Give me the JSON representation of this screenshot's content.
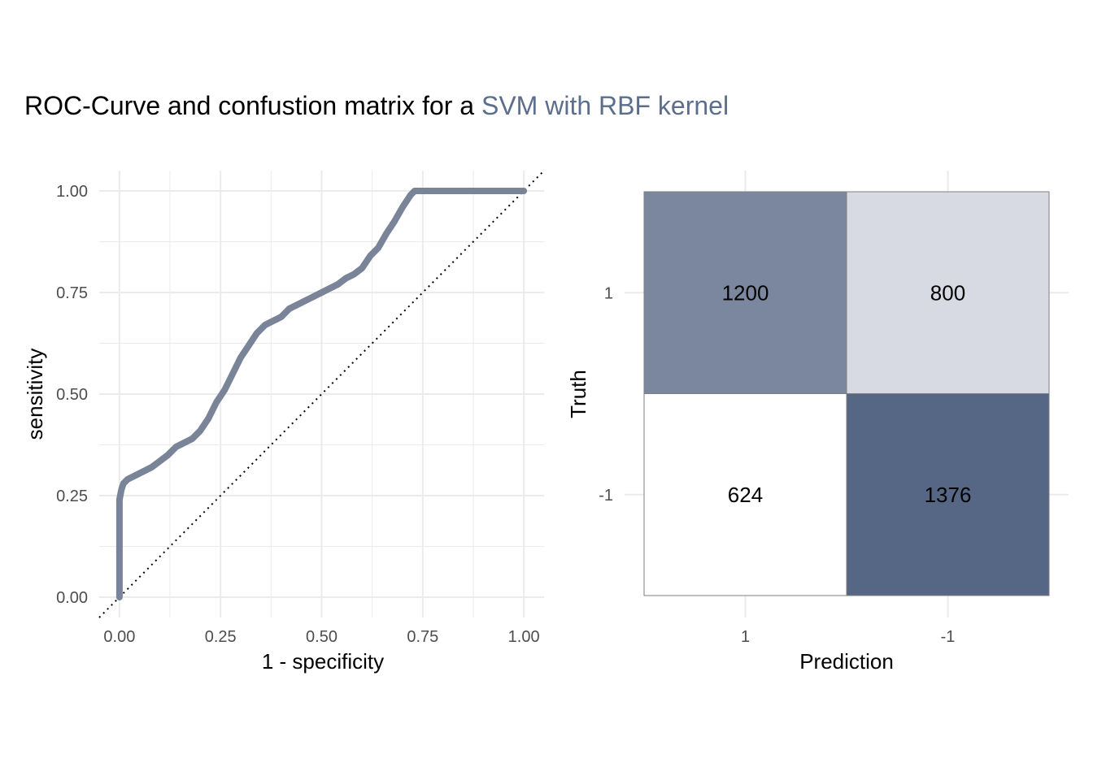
{
  "title": {
    "prefix": "ROC-Curve and confustion matrix for a ",
    "accent": "SVM with RBF kernel",
    "accent_color": "#5c6e8c"
  },
  "chart_data": [
    {
      "type": "line",
      "title": "",
      "xlabel": "1 - specificity",
      "ylabel": "sensitivity",
      "xlim": [
        -0.05,
        1.05
      ],
      "ylim": [
        -0.05,
        1.05
      ],
      "x_ticks": [
        "0.00",
        "0.25",
        "0.50",
        "0.75",
        "1.00"
      ],
      "y_ticks": [
        "0.00",
        "0.25",
        "0.50",
        "0.75",
        "1.00"
      ],
      "grid": true,
      "line_color": "#7a8499",
      "reference_line": {
        "style": "dotted",
        "from": [
          -0.05,
          -0.05
        ],
        "to": [
          1.05,
          1.05
        ]
      },
      "series": [
        {
          "x": [
            0,
            0,
            0,
            0.005,
            0.01,
            0.02,
            0.04,
            0.06,
            0.08,
            0.1,
            0.12,
            0.14,
            0.16,
            0.18,
            0.2,
            0.22,
            0.24,
            0.26,
            0.28,
            0.3,
            0.32,
            0.34,
            0.36,
            0.38,
            0.4,
            0.42,
            0.44,
            0.46,
            0.48,
            0.5,
            0.52,
            0.54,
            0.56,
            0.58,
            0.6,
            0.62,
            0.64,
            0.66,
            0.68,
            0.7,
            0.72,
            0.73,
            0.75,
            0.8,
            0.9,
            1.0
          ],
          "y": [
            0,
            0.15,
            0.24,
            0.265,
            0.28,
            0.29,
            0.3,
            0.31,
            0.32,
            0.335,
            0.35,
            0.37,
            0.38,
            0.39,
            0.41,
            0.44,
            0.48,
            0.51,
            0.55,
            0.59,
            0.62,
            0.65,
            0.67,
            0.68,
            0.69,
            0.71,
            0.72,
            0.73,
            0.74,
            0.75,
            0.76,
            0.77,
            0.785,
            0.795,
            0.81,
            0.84,
            0.86,
            0.895,
            0.925,
            0.96,
            0.99,
            1.0,
            1.0,
            1.0,
            1.0,
            1.0
          ]
        }
      ]
    },
    {
      "type": "heatmap",
      "title": "",
      "xlabel": "Prediction",
      "ylabel": "Truth",
      "x_categories": [
        "1",
        "-1"
      ],
      "y_categories": [
        "1",
        "-1"
      ],
      "cells": [
        {
          "truth": "1",
          "prediction": "1",
          "value": 1200,
          "label": "1200",
          "fill": "#7b879f"
        },
        {
          "truth": "1",
          "prediction": "-1",
          "value": 800,
          "label": "800",
          "fill": "#d8dae3"
        },
        {
          "truth": "-1",
          "prediction": "1",
          "value": 624,
          "label": "624",
          "fill": "#ffffff"
        },
        {
          "truth": "-1",
          "prediction": "-1",
          "value": 1376,
          "label": "1376",
          "fill": "#566785"
        }
      ],
      "grid": true
    }
  ]
}
